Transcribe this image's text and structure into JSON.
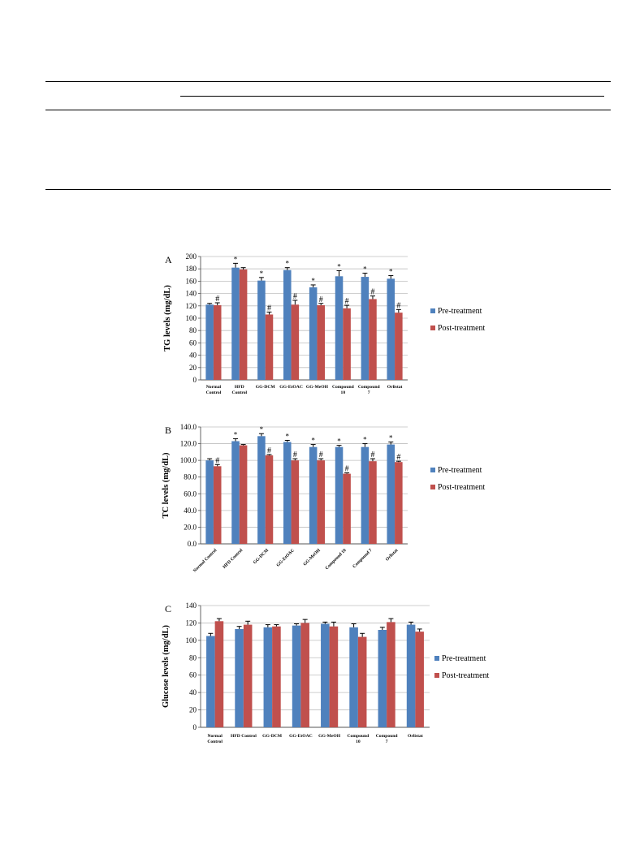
{
  "table_rules": true,
  "colors": {
    "pre": "#4f81bd",
    "post": "#c0504d",
    "error": "#000000",
    "grid": "#bfbfbf"
  },
  "legend": {
    "pre": "Pre-treatment",
    "post": "Post-treatment",
    "placement": "right"
  },
  "chart_data": [
    {
      "panel": "A",
      "type": "bar",
      "ylabel": "TG levels (mg/dL)",
      "ylim": [
        0,
        200
      ],
      "ytick_step": 20,
      "decimals": 0,
      "grid": true,
      "categories": [
        [
          "Normal",
          "Control"
        ],
        [
          "HFD",
          "Control"
        ],
        [
          "GG-DCM"
        ],
        [
          "GG-EtOAC"
        ],
        [
          "GG-MeOH"
        ],
        [
          "Compound",
          "10"
        ],
        [
          "Compound",
          "7"
        ],
        [
          "Orlistat"
        ]
      ],
      "rotate_labels": false,
      "series": [
        {
          "name": "Pre-treatment",
          "values": [
            122,
            182,
            161,
            178,
            150,
            168,
            167,
            164
          ],
          "errors": [
            2,
            7,
            5,
            4,
            4,
            9,
            6,
            5
          ],
          "marks": [
            "",
            "*",
            "*",
            "*",
            "*",
            "*",
            "*",
            "*"
          ]
        },
        {
          "name": "Post-treatment",
          "values": [
            121,
            179,
            106,
            122,
            121,
            116,
            131,
            109
          ],
          "errors": [
            4,
            3,
            4,
            7,
            3,
            5,
            5,
            5
          ],
          "marks": [
            "#",
            "",
            "#",
            "#",
            "#",
            "#",
            "#",
            "#"
          ]
        }
      ]
    },
    {
      "panel": "B",
      "type": "bar",
      "ylabel": "TC levels (mg/dL)",
      "ylim": [
        0,
        140
      ],
      "ytick_step": 20,
      "decimals": 1,
      "grid": true,
      "categories": [
        [
          "Normal Control"
        ],
        [
          "HFD Control"
        ],
        [
          "GG-DCM"
        ],
        [
          "GG-EtOAC"
        ],
        [
          "GG-MeOH"
        ],
        [
          "Compound 10"
        ],
        [
          "Compound 7"
        ],
        [
          "Orlistat"
        ]
      ],
      "rotate_labels": true,
      "series": [
        {
          "name": "Pre-treatment",
          "values": [
            100,
            123,
            129,
            122,
            116,
            116,
            116,
            119
          ],
          "errors": [
            2,
            3,
            3,
            2,
            3,
            2,
            4,
            3
          ],
          "marks": [
            "",
            "*",
            "*",
            "*",
            "*",
            "*",
            "*",
            "*"
          ]
        },
        {
          "name": "Post-treatment",
          "values": [
            93,
            118,
            106,
            100,
            100,
            84,
            99,
            98
          ],
          "errors": [
            2,
            1,
            1,
            2,
            2,
            1,
            3,
            1
          ],
          "marks": [
            "#",
            "",
            "#",
            "#",
            "#",
            "#",
            "#",
            "#"
          ]
        }
      ]
    },
    {
      "panel": "C",
      "type": "bar",
      "ylabel": "Glucose levels (mg/dL)",
      "ylim": [
        0,
        140
      ],
      "ytick_step": 20,
      "decimals": 0,
      "grid": true,
      "categories": [
        [
          "Normal",
          "Control"
        ],
        [
          "HFD Control"
        ],
        [
          "GG-DCM"
        ],
        [
          "GG-EtOAC"
        ],
        [
          "GG-MeOH"
        ],
        [
          "Compound",
          "10"
        ],
        [
          "Compound",
          "7"
        ],
        [
          "Orlistat"
        ]
      ],
      "rotate_labels": false,
      "series": [
        {
          "name": "Pre-treatment",
          "values": [
            105,
            113,
            115,
            117,
            119,
            115,
            112,
            118
          ],
          "errors": [
            3,
            3,
            3,
            2,
            2,
            4,
            3,
            3
          ],
          "marks": [
            "",
            "",
            "",
            "",
            "",
            "",
            "",
            ""
          ]
        },
        {
          "name": "Post-treatment",
          "values": [
            122,
            118,
            116,
            120,
            116,
            104,
            121,
            110
          ],
          "errors": [
            3,
            4,
            2,
            4,
            5,
            4,
            4,
            3
          ],
          "marks": [
            "",
            "",
            "",
            "",
            "",
            "",
            "",
            ""
          ]
        }
      ]
    }
  ]
}
